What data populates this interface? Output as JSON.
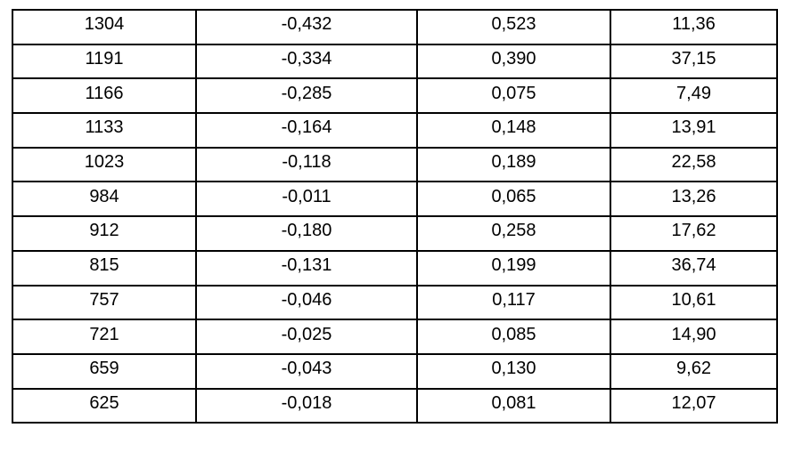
{
  "table": {
    "rows": [
      [
        "1304",
        "-0,432",
        "0,523",
        "11,36"
      ],
      [
        "1191",
        "-0,334",
        "0,390",
        "37,15"
      ],
      [
        "1166",
        "-0,285",
        "0,075",
        "7,49"
      ],
      [
        "1133",
        "-0,164",
        "0,148",
        "13,91"
      ],
      [
        "1023",
        "-0,118",
        "0,189",
        "22,58"
      ],
      [
        "984",
        "-0,011",
        "0,065",
        "13,26"
      ],
      [
        "912",
        "-0,180",
        "0,258",
        "17,62"
      ],
      [
        "815",
        "-0,131",
        "0,199",
        "36,74"
      ],
      [
        "757",
        "-0,046",
        "0,117",
        "10,61"
      ],
      [
        "721",
        "-0,025",
        "0,085",
        "14,90"
      ],
      [
        "659",
        "-0,043",
        "0,130",
        "9,62"
      ],
      [
        "625",
        "-0,018",
        "0,081",
        "12,07"
      ]
    ]
  }
}
